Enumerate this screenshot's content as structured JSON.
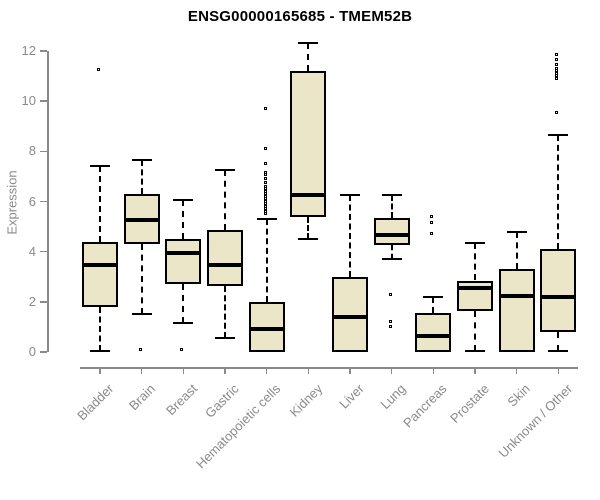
{
  "title": "ENSG00000165685 - TMEM52B",
  "chart_data": {
    "type": "boxplot",
    "title": "ENSG00000165685 - TMEM52B",
    "xlabel": "",
    "ylabel": "Expression",
    "ylim": [
      0,
      12
    ],
    "yticks": [
      0,
      2,
      4,
      6,
      8,
      10,
      12
    ],
    "grid": false,
    "legend": "none",
    "box_fill_color": "#ECE6C9",
    "box_border_color": "#000000",
    "axis_color": "#8a8a8a",
    "categories": [
      "Bladder",
      "Brain",
      "Breast",
      "Gastric",
      "Hematopoietic cells",
      "Kidney",
      "Liver",
      "Lung",
      "Pancreas",
      "Prostate",
      "Skin",
      "Unknown / Other"
    ],
    "series": [
      {
        "category": "Bladder",
        "min": 0.05,
        "q1": 1.8,
        "median": 3.45,
        "q3": 4.4,
        "max": 7.4,
        "outliers": [
          11.2
        ]
      },
      {
        "category": "Brain",
        "min": 1.5,
        "q1": 4.3,
        "median": 5.25,
        "q3": 6.3,
        "max": 7.65,
        "outliers": [
          0.05
        ]
      },
      {
        "category": "Breast",
        "min": 1.15,
        "q1": 2.7,
        "median": 3.95,
        "q3": 4.5,
        "max": 6.05,
        "outliers": [
          0.05
        ]
      },
      {
        "category": "Gastric",
        "min": 0.55,
        "q1": 2.65,
        "median": 3.45,
        "q3": 4.85,
        "max": 7.25,
        "outliers": []
      },
      {
        "category": "Hematopoietic cells",
        "min": 0.0,
        "q1": 0.0,
        "median": 0.9,
        "q3": 2.0,
        "max": 5.3,
        "outliers": [
          5.45,
          5.55,
          5.65,
          5.75,
          5.85,
          5.95,
          6.05,
          6.15,
          6.25,
          6.35,
          6.45,
          6.55,
          6.7,
          6.85,
          7.0,
          7.1,
          7.45,
          8.05,
          9.65
        ]
      },
      {
        "category": "Kidney",
        "min": 4.5,
        "q1": 5.4,
        "median": 6.25,
        "q3": 11.2,
        "max": 12.3,
        "outliers": []
      },
      {
        "category": "Liver",
        "min": 0.0,
        "q1": 0.0,
        "median": 1.4,
        "q3": 3.0,
        "max": 6.25,
        "outliers": []
      },
      {
        "category": "Lung",
        "min": 3.7,
        "q1": 4.25,
        "median": 4.65,
        "q3": 5.35,
        "max": 6.25,
        "outliers": [
          2.25,
          1.15,
          0.95
        ]
      },
      {
        "category": "Pancreas",
        "min": 0.0,
        "q1": 0.0,
        "median": 0.65,
        "q3": 1.55,
        "max": 2.2,
        "outliers": [
          5.35,
          5.1,
          4.65
        ]
      },
      {
        "category": "Prostate",
        "min": 0.05,
        "q1": 1.65,
        "median": 2.55,
        "q3": 2.85,
        "max": 4.35,
        "outliers": []
      },
      {
        "category": "Skin",
        "min": 0.0,
        "q1": 0.0,
        "median": 2.25,
        "q3": 3.3,
        "max": 4.8,
        "outliers": []
      },
      {
        "category": "Unknown / Other",
        "min": 0.05,
        "q1": 0.8,
        "median": 2.2,
        "q3": 4.1,
        "max": 8.65,
        "outliers": [
          9.5,
          10.85,
          10.95,
          11.05,
          11.15,
          11.25,
          11.4,
          11.6,
          11.8
        ]
      }
    ]
  }
}
